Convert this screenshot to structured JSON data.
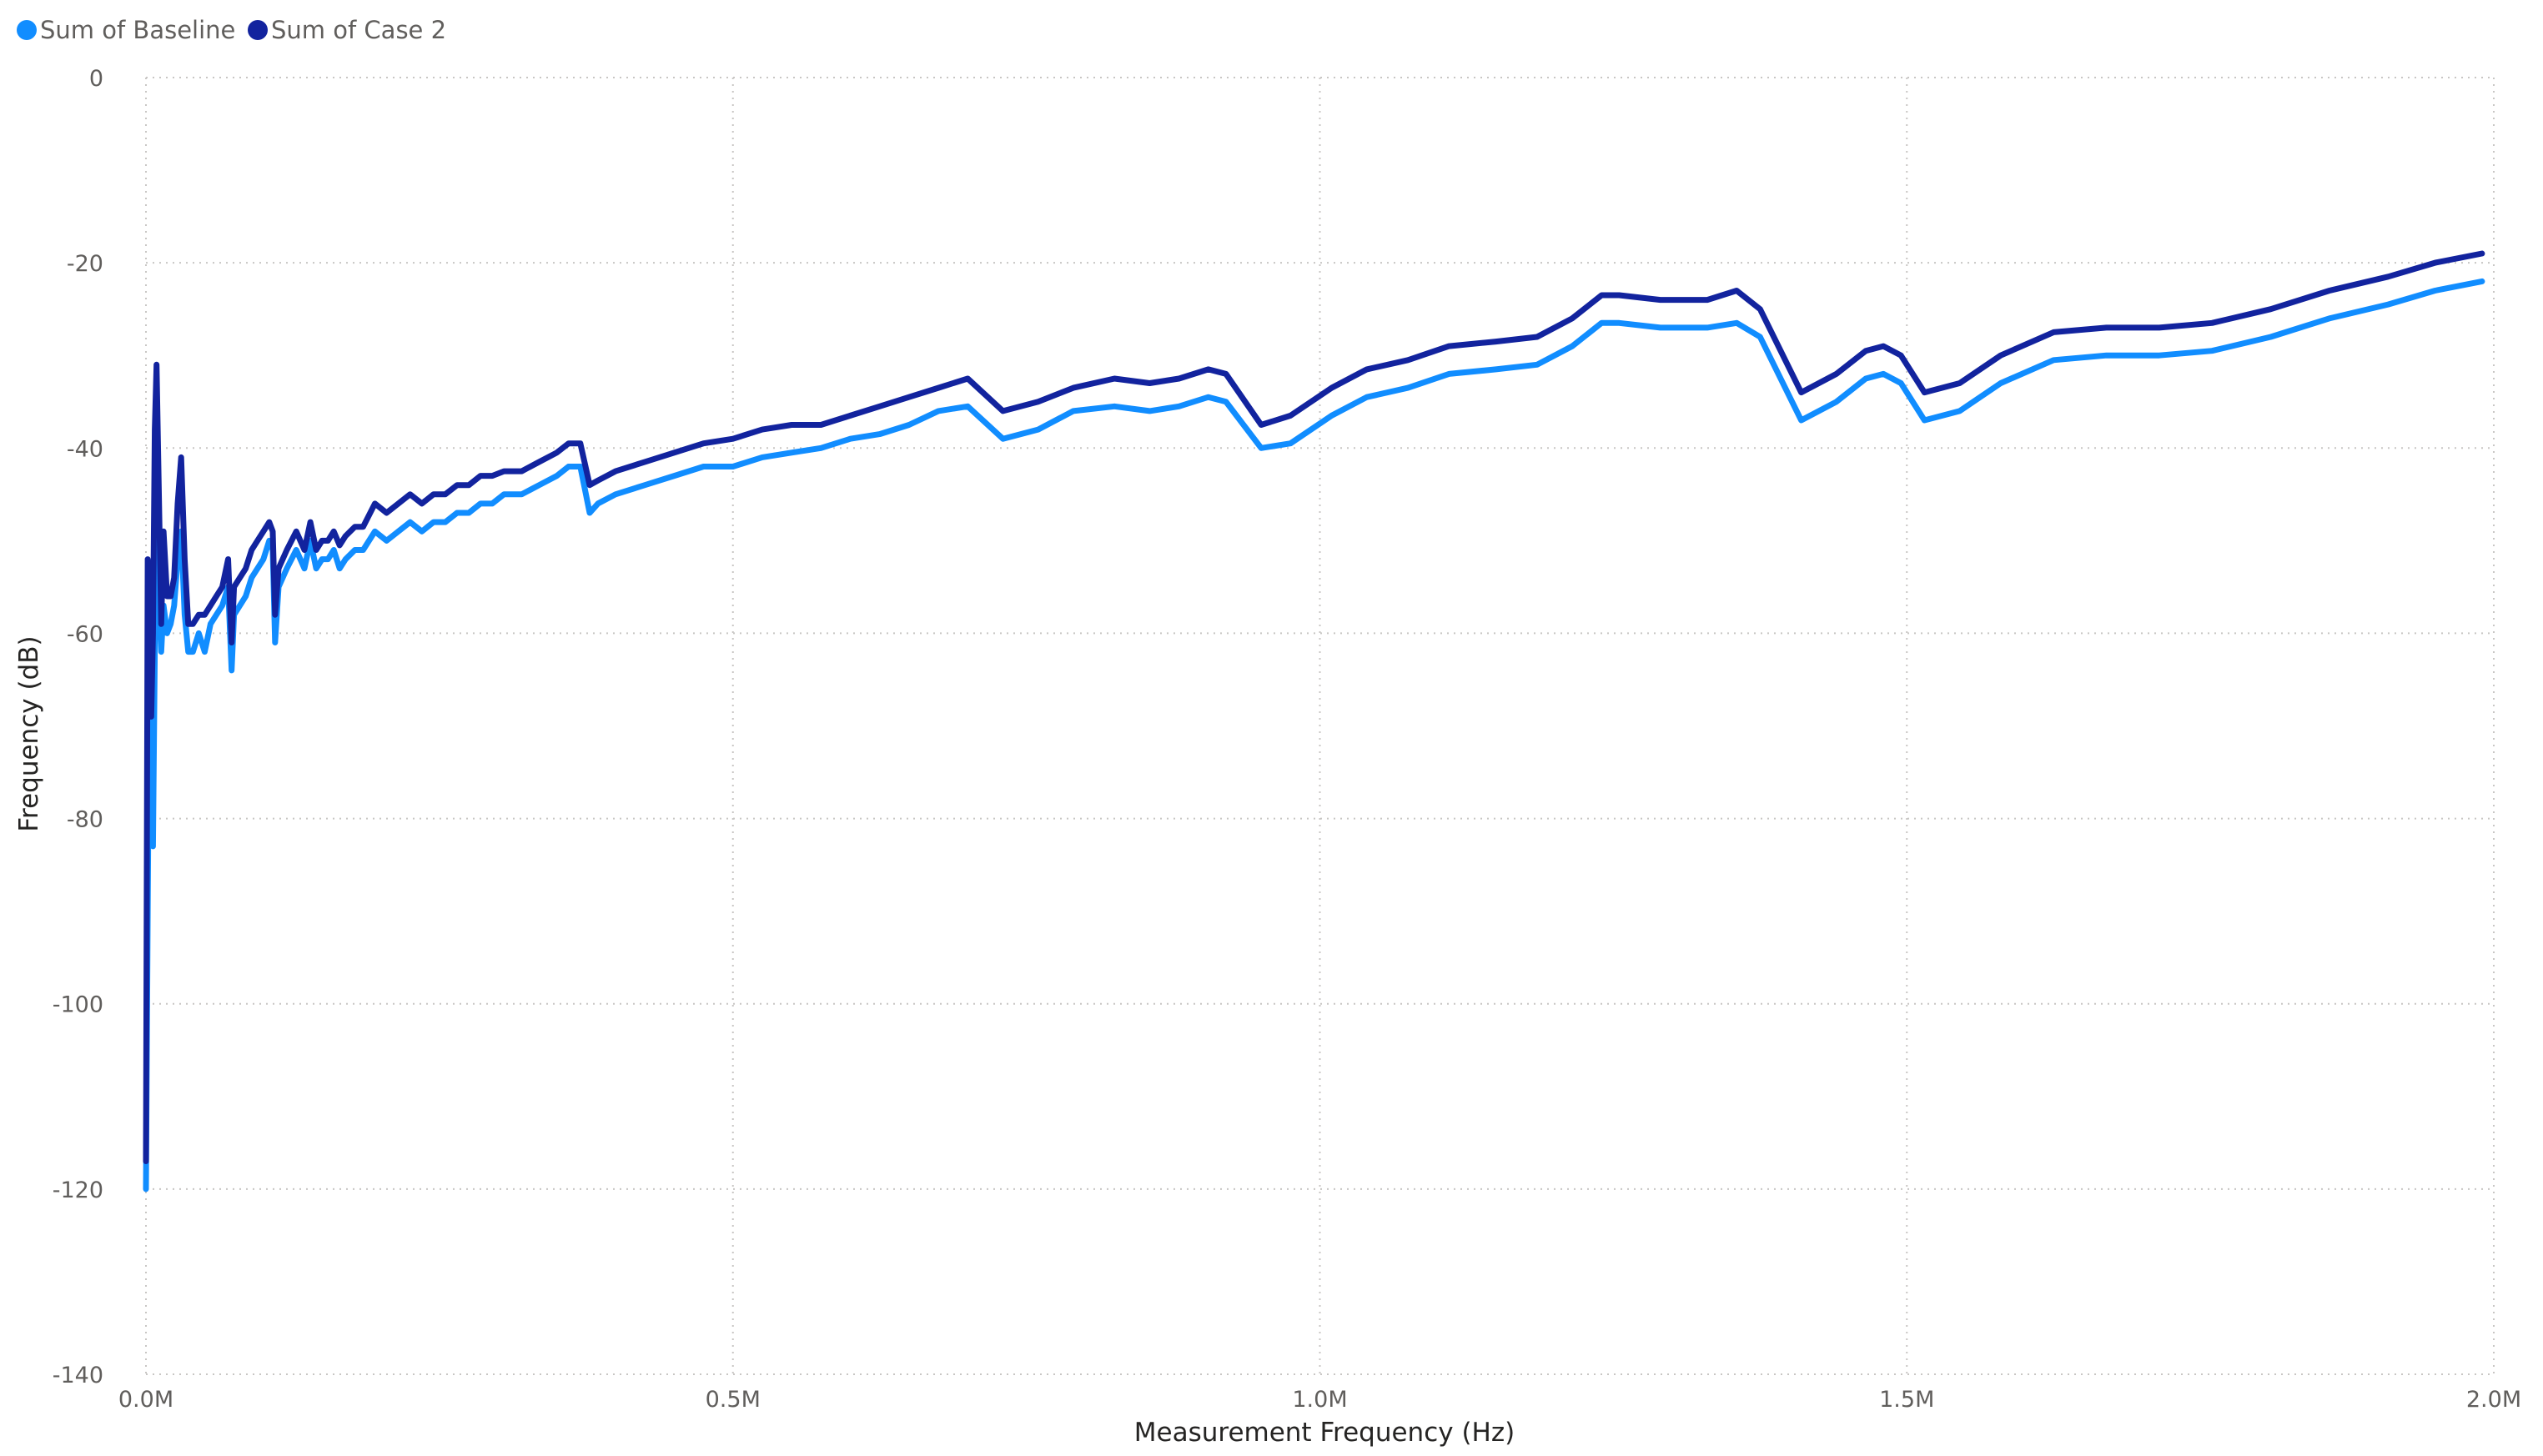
{
  "chart_data": {
    "type": "line",
    "title": "",
    "xlabel": "Measurement Frequency (Hz)",
    "ylabel": "Frequency (dB)",
    "xlim": [
      0,
      2000000
    ],
    "ylim": [
      -140,
      0
    ],
    "x_ticks": [
      {
        "value": 0,
        "label": "0.0M"
      },
      {
        "value": 500000,
        "label": "0.5M"
      },
      {
        "value": 1000000,
        "label": "1.0M"
      },
      {
        "value": 1500000,
        "label": "1.5M"
      },
      {
        "value": 2000000,
        "label": "2.0M"
      }
    ],
    "y_ticks": [
      {
        "value": 0,
        "label": "0"
      },
      {
        "value": -20,
        "label": "-20"
      },
      {
        "value": -40,
        "label": "-40"
      },
      {
        "value": -60,
        "label": "-60"
      },
      {
        "value": -80,
        "label": "-80"
      },
      {
        "value": -100,
        "label": "-100"
      },
      {
        "value": -120,
        "label": "-120"
      },
      {
        "value": -140,
        "label": "-140"
      }
    ],
    "grid": true,
    "legend_position": "top-left",
    "series": [
      {
        "name": "Sum of Baseline",
        "color": "#118DFF",
        "points": [
          [
            0,
            -120
          ],
          [
            1500,
            -90
          ],
          [
            3000,
            -62
          ],
          [
            4500,
            -68
          ],
          [
            6000,
            -83
          ],
          [
            7500,
            -62
          ],
          [
            9000,
            -44
          ],
          [
            11000,
            -55
          ],
          [
            13000,
            -62
          ],
          [
            15000,
            -57
          ],
          [
            18000,
            -60
          ],
          [
            21000,
            -59
          ],
          [
            24000,
            -57
          ],
          [
            27000,
            -52
          ],
          [
            30000,
            -49
          ],
          [
            33000,
            -58
          ],
          [
            36000,
            -62
          ],
          [
            40000,
            -62
          ],
          [
            45000,
            -60
          ],
          [
            50000,
            -62
          ],
          [
            55000,
            -59
          ],
          [
            60000,
            -58
          ],
          [
            65000,
            -57
          ],
          [
            70000,
            -55
          ],
          [
            73000,
            -64
          ],
          [
            75000,
            -58
          ],
          [
            80000,
            -57
          ],
          [
            85000,
            -56
          ],
          [
            90000,
            -54
          ],
          [
            95000,
            -53
          ],
          [
            100000,
            -52
          ],
          [
            105000,
            -50
          ],
          [
            108000,
            -51
          ],
          [
            110000,
            -61
          ],
          [
            113000,
            -55
          ],
          [
            120000,
            -53
          ],
          [
            128000,
            -51
          ],
          [
            135000,
            -53
          ],
          [
            140000,
            -50
          ],
          [
            145000,
            -53
          ],
          [
            150000,
            -52
          ],
          [
            155000,
            -52
          ],
          [
            160000,
            -51
          ],
          [
            165000,
            -53
          ],
          [
            170000,
            -52
          ],
          [
            178000,
            -51
          ],
          [
            185000,
            -51
          ],
          [
            195000,
            -49
          ],
          [
            205000,
            -50
          ],
          [
            215000,
            -49
          ],
          [
            225000,
            -48
          ],
          [
            235000,
            -49
          ],
          [
            245000,
            -48
          ],
          [
            255000,
            -48
          ],
          [
            265000,
            -47
          ],
          [
            275000,
            -47
          ],
          [
            285000,
            -46
          ],
          [
            295000,
            -46
          ],
          [
            305000,
            -45
          ],
          [
            320000,
            -45
          ],
          [
            335000,
            -44
          ],
          [
            350000,
            -43
          ],
          [
            360000,
            -42
          ],
          [
            370000,
            -42
          ],
          [
            378000,
            -47
          ],
          [
            385000,
            -46
          ],
          [
            400000,
            -45
          ],
          [
            425000,
            -44
          ],
          [
            450000,
            -43
          ],
          [
            475000,
            -42
          ],
          [
            500000,
            -42
          ],
          [
            525000,
            -41
          ],
          [
            550000,
            -40.5
          ],
          [
            575000,
            -40
          ],
          [
            600000,
            -39
          ],
          [
            625000,
            -38.5
          ],
          [
            650000,
            -37.5
          ],
          [
            675000,
            -36
          ],
          [
            700000,
            -35.5
          ],
          [
            730000,
            -39
          ],
          [
            760000,
            -38
          ],
          [
            790000,
            -36
          ],
          [
            825000,
            -35.5
          ],
          [
            855000,
            -36
          ],
          [
            880000,
            -35.5
          ],
          [
            905000,
            -34.5
          ],
          [
            920000,
            -35
          ],
          [
            950000,
            -40
          ],
          [
            975000,
            -39.5
          ],
          [
            1010000,
            -36.5
          ],
          [
            1040000,
            -34.5
          ],
          [
            1075000,
            -33.5
          ],
          [
            1110000,
            -32
          ],
          [
            1150000,
            -31.5
          ],
          [
            1185000,
            -31
          ],
          [
            1215000,
            -29
          ],
          [
            1240000,
            -26.5
          ],
          [
            1255000,
            -26.5
          ],
          [
            1290000,
            -27
          ],
          [
            1330000,
            -27
          ],
          [
            1355000,
            -26.5
          ],
          [
            1375000,
            -28
          ],
          [
            1410000,
            -37
          ],
          [
            1440000,
            -35
          ],
          [
            1465000,
            -32.5
          ],
          [
            1480000,
            -32
          ],
          [
            1495000,
            -33
          ],
          [
            1515000,
            -37
          ],
          [
            1545000,
            -36
          ],
          [
            1580000,
            -33
          ],
          [
            1625000,
            -30.5
          ],
          [
            1670000,
            -30
          ],
          [
            1715000,
            -30
          ],
          [
            1760000,
            -29.5
          ],
          [
            1810000,
            -28
          ],
          [
            1860000,
            -26
          ],
          [
            1910000,
            -24.5
          ],
          [
            1950000,
            -23
          ],
          [
            1990000,
            -22
          ]
        ]
      },
      {
        "name": "Sum of Case 2",
        "color": "#12239E",
        "points": [
          [
            0,
            -117
          ],
          [
            1500,
            -52
          ],
          [
            3000,
            -55
          ],
          [
            4500,
            -69
          ],
          [
            6000,
            -60
          ],
          [
            7500,
            -38
          ],
          [
            9000,
            -31
          ],
          [
            11000,
            -45
          ],
          [
            13000,
            -59
          ],
          [
            15000,
            -49
          ],
          [
            18000,
            -56
          ],
          [
            21000,
            -56
          ],
          [
            24000,
            -54
          ],
          [
            27000,
            -46
          ],
          [
            30000,
            -41
          ],
          [
            33000,
            -52
          ],
          [
            36000,
            -59
          ],
          [
            40000,
            -59
          ],
          [
            45000,
            -58
          ],
          [
            50000,
            -58
          ],
          [
            55000,
            -57
          ],
          [
            60000,
            -56
          ],
          [
            65000,
            -55
          ],
          [
            70000,
            -52
          ],
          [
            73000,
            -61
          ],
          [
            75000,
            -55
          ],
          [
            80000,
            -54
          ],
          [
            85000,
            -53
          ],
          [
            90000,
            -51
          ],
          [
            95000,
            -50
          ],
          [
            100000,
            -49
          ],
          [
            105000,
            -48
          ],
          [
            108000,
            -49
          ],
          [
            110000,
            -58
          ],
          [
            113000,
            -53
          ],
          [
            120000,
            -51
          ],
          [
            128000,
            -49
          ],
          [
            135000,
            -51
          ],
          [
            140000,
            -48
          ],
          [
            145000,
            -51
          ],
          [
            150000,
            -50
          ],
          [
            155000,
            -50
          ],
          [
            160000,
            -49
          ],
          [
            165000,
            -50.5
          ],
          [
            170000,
            -49.5
          ],
          [
            178000,
            -48.5
          ],
          [
            185000,
            -48.5
          ],
          [
            195000,
            -46
          ],
          [
            205000,
            -47
          ],
          [
            215000,
            -46
          ],
          [
            225000,
            -45
          ],
          [
            235000,
            -46
          ],
          [
            245000,
            -45
          ],
          [
            255000,
            -45
          ],
          [
            265000,
            -44
          ],
          [
            275000,
            -44
          ],
          [
            285000,
            -43
          ],
          [
            295000,
            -43
          ],
          [
            305000,
            -42.5
          ],
          [
            320000,
            -42.5
          ],
          [
            335000,
            -41.5
          ],
          [
            350000,
            -40.5
          ],
          [
            360000,
            -39.5
          ],
          [
            370000,
            -39.5
          ],
          [
            378000,
            -44
          ],
          [
            385000,
            -43.5
          ],
          [
            400000,
            -42.5
          ],
          [
            425000,
            -41.5
          ],
          [
            450000,
            -40.5
          ],
          [
            475000,
            -39.5
          ],
          [
            500000,
            -39
          ],
          [
            525000,
            -38
          ],
          [
            550000,
            -37.5
          ],
          [
            575000,
            -37.5
          ],
          [
            600000,
            -36.5
          ],
          [
            625000,
            -35.5
          ],
          [
            650000,
            -34.5
          ],
          [
            675000,
            -33.5
          ],
          [
            700000,
            -32.5
          ],
          [
            730000,
            -36
          ],
          [
            760000,
            -35
          ],
          [
            790000,
            -33.5
          ],
          [
            825000,
            -32.5
          ],
          [
            855000,
            -33
          ],
          [
            880000,
            -32.5
          ],
          [
            905000,
            -31.5
          ],
          [
            920000,
            -32
          ],
          [
            950000,
            -37.5
          ],
          [
            975000,
            -36.5
          ],
          [
            1010000,
            -33.5
          ],
          [
            1040000,
            -31.5
          ],
          [
            1075000,
            -30.5
          ],
          [
            1110000,
            -29
          ],
          [
            1150000,
            -28.5
          ],
          [
            1185000,
            -28
          ],
          [
            1215000,
            -26
          ],
          [
            1240000,
            -23.5
          ],
          [
            1255000,
            -23.5
          ],
          [
            1290000,
            -24
          ],
          [
            1330000,
            -24
          ],
          [
            1355000,
            -23
          ],
          [
            1375000,
            -25
          ],
          [
            1410000,
            -34
          ],
          [
            1440000,
            -32
          ],
          [
            1465000,
            -29.5
          ],
          [
            1480000,
            -29
          ],
          [
            1495000,
            -30
          ],
          [
            1515000,
            -34
          ],
          [
            1545000,
            -33
          ],
          [
            1580000,
            -30
          ],
          [
            1625000,
            -27.5
          ],
          [
            1670000,
            -27
          ],
          [
            1715000,
            -27
          ],
          [
            1760000,
            -26.5
          ],
          [
            1810000,
            -25
          ],
          [
            1860000,
            -23
          ],
          [
            1910000,
            -21.5
          ],
          [
            1950000,
            -20
          ],
          [
            1990000,
            -19
          ]
        ]
      }
    ]
  }
}
